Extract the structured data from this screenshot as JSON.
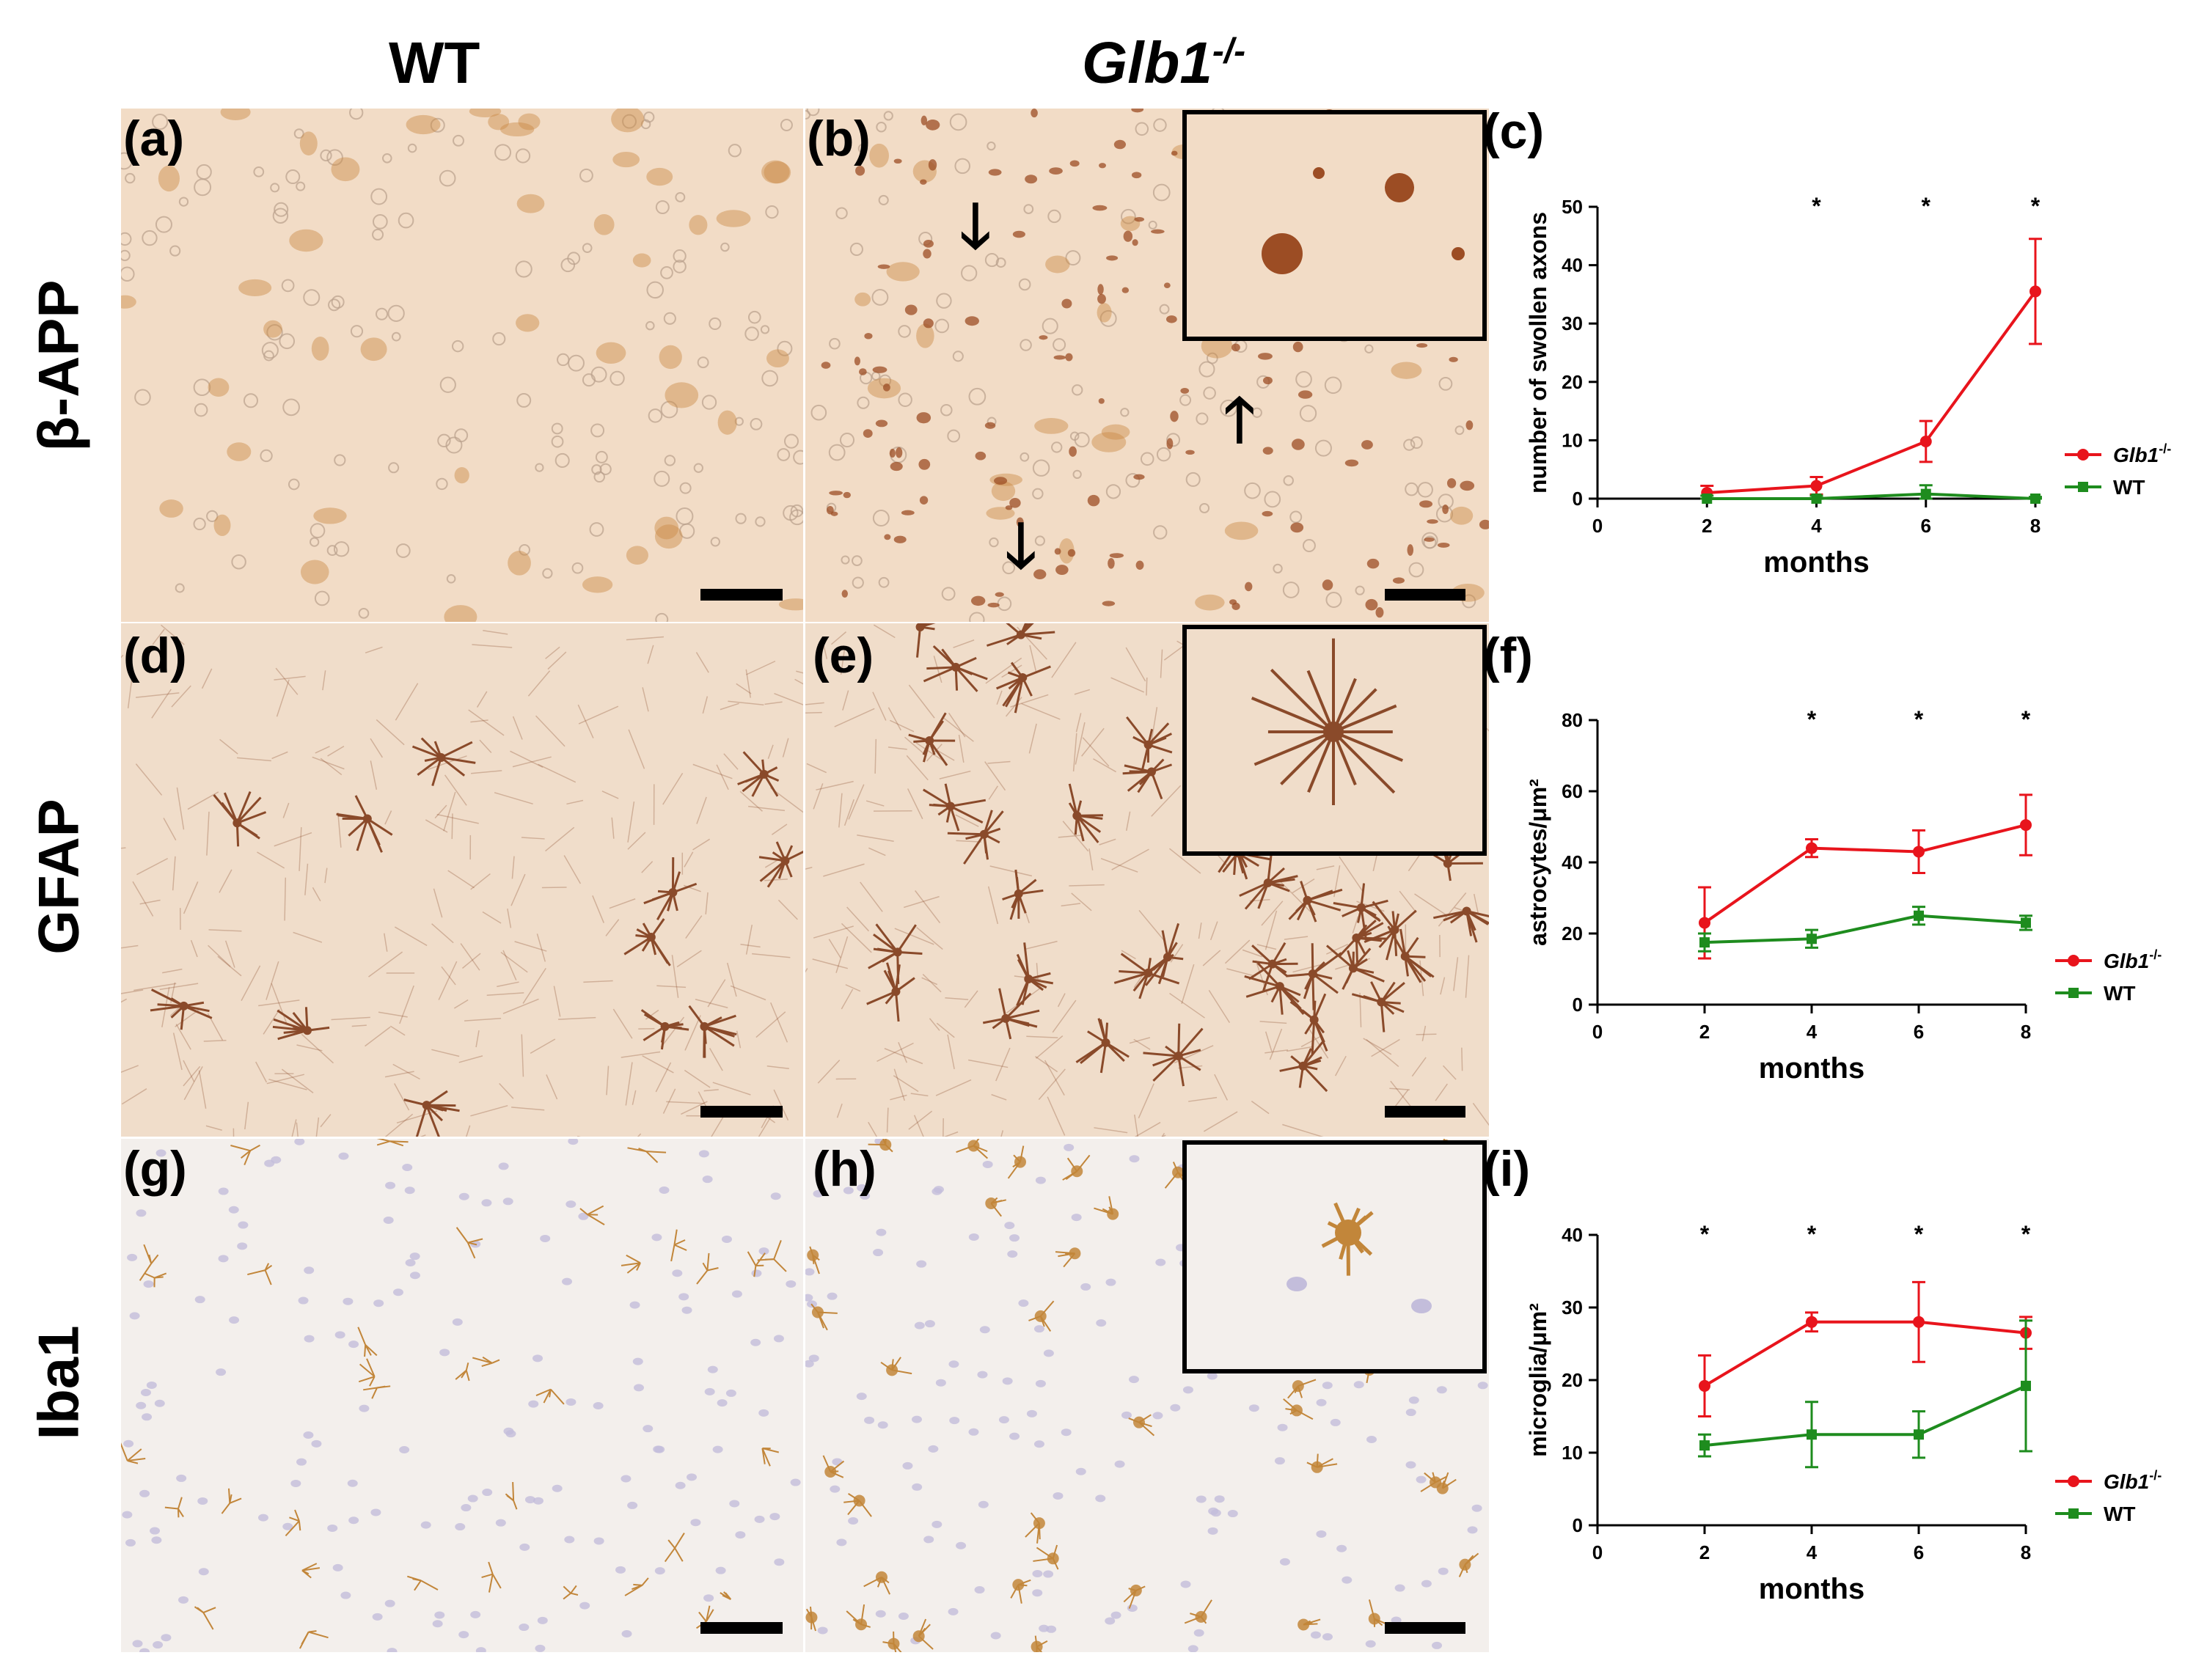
{
  "column_headers": {
    "wt": "WT",
    "ko": "Glb1",
    "ko_sup": "-/-"
  },
  "row_labels": {
    "app": "β-APP",
    "gfap": "GFAP",
    "iba1": "Iba1"
  },
  "panel_labels": {
    "a": "(a)",
    "b": "(b)",
    "c": "(c)",
    "d": "(d)",
    "e": "(e)",
    "f": "(f)",
    "g": "(g)",
    "h": "(h)",
    "i": "(i)"
  },
  "colors": {
    "app_bg": "#f2dcc6",
    "app_cell": "#c98a45",
    "app_dark": "#9c4d24",
    "gfap_bg": "#f0ddca",
    "gfap_fiber": "#8a4a2a",
    "iba_bg": "#f3efec",
    "iba_cell": "#c2863a",
    "iba_nucleus": "#c3bddb",
    "ko": "#e8141c",
    "wt": "#1e8c1e"
  },
  "chart_data": [
    {
      "type": "line",
      "panel": "(c)",
      "title": "",
      "xlabel": "months",
      "ylabel": "number of swollen axons",
      "x": [
        2,
        4,
        6,
        8
      ],
      "xticks": [
        "0",
        "2",
        "4",
        "6",
        "8"
      ],
      "yticks": [
        "0",
        "10",
        "20",
        "30",
        "40",
        "50"
      ],
      "xlim": [
        0,
        8
      ],
      "ylim": [
        0,
        50
      ],
      "series": [
        {
          "name": "Glb1",
          "name_sup": "-/-",
          "marker": "circle",
          "values": [
            1,
            2.2,
            9.8,
            35.5
          ],
          "errors": [
            1.2,
            1.5,
            3.5,
            9
          ]
        },
        {
          "name": "WT",
          "name_sup": "",
          "marker": "square",
          "values": [
            0,
            0,
            0.8,
            0
          ],
          "errors": [
            0.5,
            0.5,
            1.5,
            0.3
          ]
        }
      ],
      "significance": [
        {
          "x": 4,
          "label": "*"
        },
        {
          "x": 6,
          "label": "*"
        },
        {
          "x": 8,
          "label": "*"
        }
      ],
      "legend": "right"
    },
    {
      "type": "line",
      "panel": "(f)",
      "title": "",
      "xlabel": "months",
      "ylabel": "astrocytes/μm²",
      "x": [
        2,
        4,
        6,
        8
      ],
      "xticks": [
        "0",
        "2",
        "4",
        "6",
        "8"
      ],
      "yticks": [
        "0",
        "20",
        "40",
        "60",
        "80"
      ],
      "xlim": [
        0,
        8
      ],
      "ylim": [
        0,
        80
      ],
      "series": [
        {
          "name": "Glb1",
          "name_sup": "-/-",
          "marker": "circle",
          "values": [
            23,
            44,
            43,
            50.5
          ],
          "errors": [
            10,
            2.5,
            6,
            8.5
          ]
        },
        {
          "name": "WT",
          "name_sup": "",
          "marker": "square",
          "values": [
            17.5,
            18.5,
            25,
            23
          ],
          "errors": [
            2.5,
            2.5,
            2.5,
            2
          ]
        }
      ],
      "significance": [
        {
          "x": 4,
          "label": "*"
        },
        {
          "x": 6,
          "label": "*"
        },
        {
          "x": 8,
          "label": "*"
        }
      ],
      "legend": "right"
    },
    {
      "type": "line",
      "panel": "(i)",
      "title": "",
      "xlabel": "months",
      "ylabel": "microglia/μm²",
      "x": [
        2,
        4,
        6,
        8
      ],
      "xticks": [
        "0",
        "2",
        "4",
        "6",
        "8"
      ],
      "yticks": [
        "0",
        "10",
        "20",
        "30",
        "40"
      ],
      "xlim": [
        0,
        8
      ],
      "ylim": [
        0,
        40
      ],
      "series": [
        {
          "name": "Glb1",
          "name_sup": "-/-",
          "marker": "circle",
          "values": [
            19.2,
            28,
            28,
            26.5
          ],
          "errors": [
            4.2,
            1.3,
            5.5,
            2.2
          ]
        },
        {
          "name": "WT",
          "name_sup": "",
          "marker": "square",
          "values": [
            11,
            12.5,
            12.5,
            19.2
          ],
          "errors": [
            1.5,
            4.5,
            3.2,
            9
          ]
        }
      ],
      "significance": [
        {
          "x": 2,
          "label": "*"
        },
        {
          "x": 4,
          "label": "*"
        },
        {
          "x": 6,
          "label": "*"
        },
        {
          "x": 8,
          "label": "*"
        }
      ],
      "legend": "right"
    }
  ]
}
